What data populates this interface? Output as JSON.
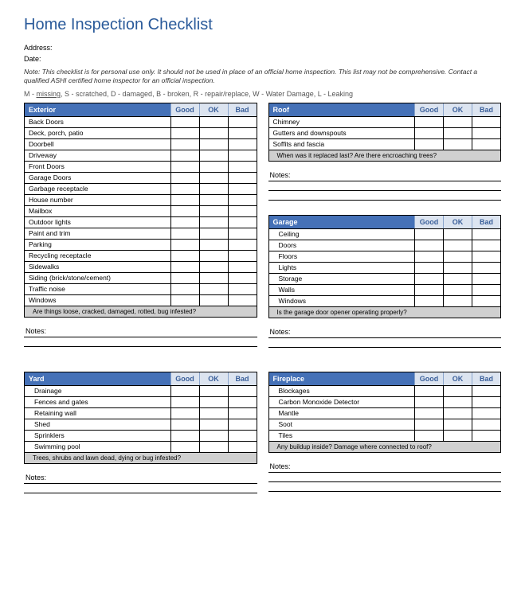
{
  "title": "Home Inspection Checklist",
  "address_label": "Address:",
  "date_label": "Date:",
  "note": "Note: This checklist is for personal use only. It should not be used in place of an official home inspection. This list may not be comprehensive. Contact a qualified ASHI certified home inspector for an official inspection.",
  "legend_parts": {
    "m": "M - ",
    "m_word": "missing",
    "rest": ",  S - scratched,  D - damaged,  B - broken,  R - repair/replace,  W - Water Damage,  L - Leaking"
  },
  "ratings": {
    "good": "Good",
    "ok": "OK",
    "bad": "Bad"
  },
  "notes_label": "Notes:",
  "sections": {
    "exterior": {
      "title": "Exterior",
      "items": [
        "Back Doors",
        "Deck, porch, patio",
        "Doorbell",
        "Driveway",
        "Front Doors",
        "Garage Doors",
        "Garbage receptacle",
        "House number",
        "Mailbox",
        "Outdoor lights",
        "Paint and trim",
        "Parking",
        "Recycling receptacle",
        "Sidewalks",
        "Siding (brick/stone/cement)",
        "Traffic noise",
        "Windows"
      ],
      "question": "Are things loose, cracked, damaged, rotted, bug infested?"
    },
    "roof": {
      "title": "Roof",
      "items": [
        "Chimney",
        "Gutters and downspouts",
        "Soffits and fascia"
      ],
      "question": "When was it replaced last? Are there encroaching trees?"
    },
    "garage": {
      "title": "Garage",
      "items": [
        "Ceiling",
        "Doors",
        "Floors",
        "Lights",
        "Storage",
        "Walls",
        "Windows"
      ],
      "question": "Is the garage door opener operating properly?"
    },
    "yard": {
      "title": "Yard",
      "items": [
        "Drainage",
        "Fences and gates",
        "Retaining wall",
        "Shed",
        "Sprinklers",
        "Swimming pool"
      ],
      "question": "Trees, shrubs and lawn dead, dying or bug infested?"
    },
    "fireplace": {
      "title": "Fireplace",
      "items": [
        "Blockages",
        "Carbon Monoxide Detector",
        "Mantle",
        "Soot",
        "Tiles"
      ],
      "question": "Any buildup inside? Damage where connected to roof?"
    }
  }
}
